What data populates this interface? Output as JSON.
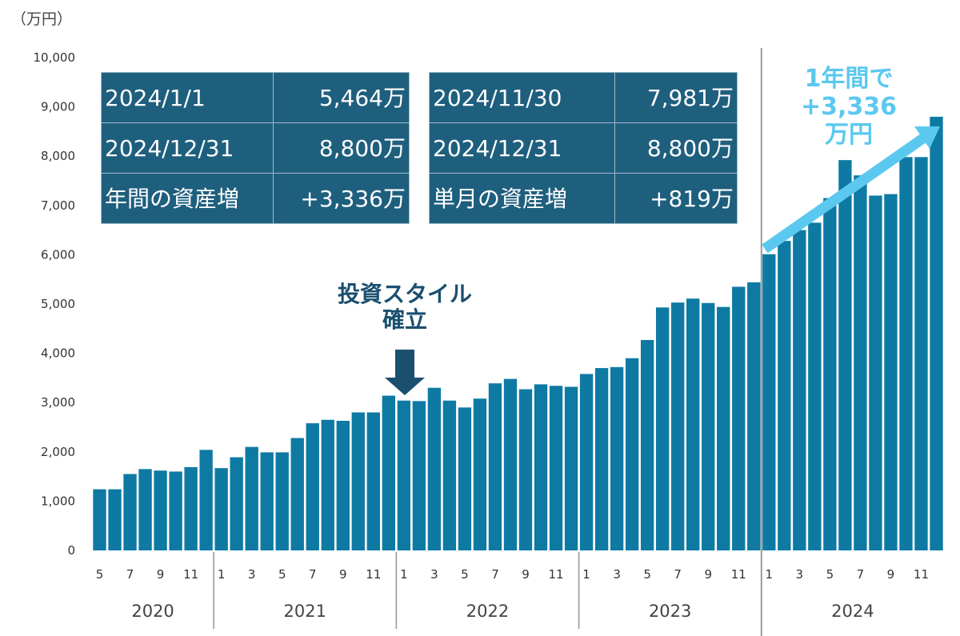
{
  "chart_data": {
    "type": "bar",
    "unit_label": "（万円）",
    "ylim": [
      0,
      10000
    ],
    "yticks": [
      "0",
      "1,000",
      "2,000",
      "3,000",
      "4,000",
      "5,000",
      "6,000",
      "7,000",
      "8,000",
      "9,000",
      "10,000"
    ],
    "grid": false,
    "bar_color": "#0e7aa3",
    "years": [
      "2020",
      "2021",
      "2022",
      "2023",
      "2024"
    ],
    "year_start_months": [
      5,
      1,
      1,
      1,
      1
    ],
    "month_labels_shown": [
      1,
      3,
      5,
      7,
      9,
      11
    ],
    "values": [
      1240,
      1240,
      1550,
      1650,
      1620,
      1600,
      1690,
      2040,
      1670,
      1890,
      2100,
      1990,
      1990,
      2280,
      2580,
      2650,
      2630,
      2800,
      2800,
      3140,
      3040,
      3030,
      3300,
      3040,
      2900,
      3080,
      3390,
      3480,
      3270,
      3370,
      3340,
      3320,
      3580,
      3700,
      3720,
      3900,
      4270,
      4930,
      5030,
      5110,
      5020,
      4940,
      5350,
      5440,
      6010,
      6280,
      6500,
      6650,
      7150,
      7920,
      7610,
      7200,
      7230,
      7981,
      7981,
      8800
    ]
  },
  "table_left": {
    "rows": [
      {
        "label": "2024/1/1",
        "value": "5,464万"
      },
      {
        "label": "2024/12/31",
        "value": "8,800万"
      },
      {
        "label": "年間の資産増",
        "value": "+3,336万"
      }
    ]
  },
  "table_right": {
    "rows": [
      {
        "label": "2024/11/30",
        "value": "7,981万"
      },
      {
        "label": "2024/12/31",
        "value": "8,800万"
      },
      {
        "label": "単月の資産増",
        "value": "+819万"
      }
    ]
  },
  "annotation_style": {
    "line1": "投資スタイル",
    "line2": "確立",
    "color": "#1a4f6e"
  },
  "annotation_growth": {
    "line1": "1年間で",
    "line2": "+3,336",
    "line3": "万円",
    "color": "#5bc8ef"
  }
}
